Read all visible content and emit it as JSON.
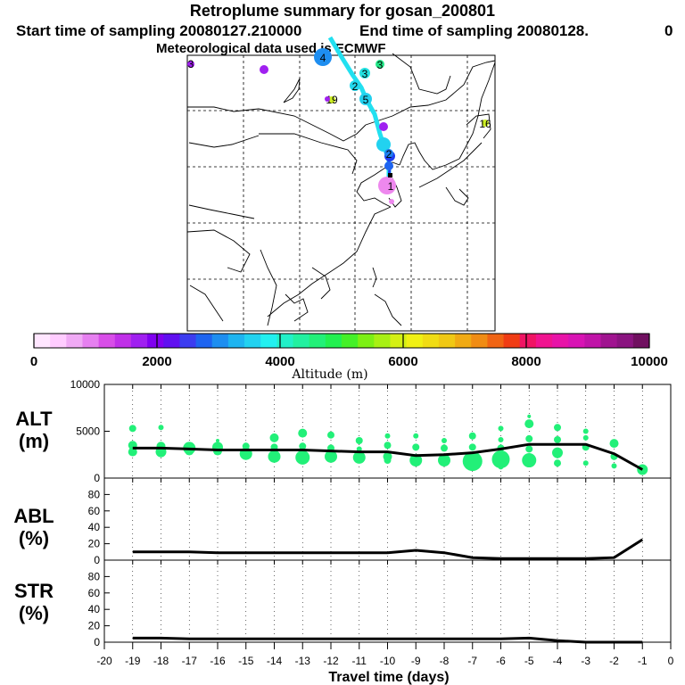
{
  "header": {
    "title": "Retroplume summary for gosan_200801",
    "start": "Start time of sampling 20080127.210000",
    "end": "End time of sampling 20080128.",
    "end_tail": "0",
    "met": "Meteorological data used is ECMWF"
  },
  "map": {
    "track_color": "#22e0f0",
    "markers": [
      {
        "label": "4",
        "color": "#1e8ef0"
      },
      {
        "label": "3",
        "color": "#22e888"
      },
      {
        "label": "3",
        "color": "#22e0e0"
      },
      {
        "label": "2",
        "color": "#22d8ee"
      },
      {
        "label": "5",
        "color": "#22d0ee"
      },
      {
        "label": "19",
        "color": "#ccee22"
      },
      {
        "label": "3",
        "color": "#a020f0"
      },
      {
        "label": "16",
        "color": "#ccee22"
      },
      {
        "label": "2",
        "color": "#1e80f0"
      },
      {
        "label": "1",
        "color": "#ee88ee"
      }
    ]
  },
  "colorbar": {
    "title": "Altitude (m)",
    "min": 0,
    "max": 10000,
    "labels": [
      "0",
      "2000",
      "4000",
      "6000",
      "8000",
      "10000"
    ],
    "colors": [
      "#ffe6ff",
      "#ffccff",
      "#f0aaf5",
      "#e680f0",
      "#d84ee8",
      "#c030e8",
      "#a020f0",
      "#8000f0",
      "#6010f0",
      "#3c3cf0",
      "#1e64f0",
      "#1e8ef0",
      "#1eb4f0",
      "#22d2f0",
      "#22f0f0",
      "#22f0c8",
      "#22f0a0",
      "#22f078",
      "#22f050",
      "#44f028",
      "#7cf014",
      "#a8f014",
      "#d4f014",
      "#f0f014",
      "#f0dc14",
      "#f0c814",
      "#f0aa14",
      "#f08c14",
      "#f06414",
      "#f03c14",
      "#f01464",
      "#f01490",
      "#e814a8",
      "#d814b4",
      "#c014a8",
      "#a01490",
      "#8a1480",
      "#701060"
    ]
  },
  "panels": {
    "alt_label": [
      "ALT",
      "(m)"
    ],
    "abl_label": [
      "ABL",
      "(%)"
    ],
    "str_label": [
      "STR",
      "(%)"
    ]
  },
  "chart_data": {
    "type": "line",
    "xlabel": "Travel time (days)",
    "x_ticks": [
      "-20",
      "-19",
      "-18",
      "-17",
      "-16",
      "-15",
      "-14",
      "-13",
      "-12",
      "-11",
      "-10",
      "-9",
      "-8",
      "-7",
      "-6",
      "-5",
      "-4",
      "-3",
      "-2",
      "-1",
      "0"
    ],
    "xlim": [
      -20,
      0
    ],
    "x": [
      -19,
      -18,
      -17,
      -16,
      -15,
      -14,
      -13,
      -12,
      -11,
      -10,
      -9,
      -8,
      -7,
      -6,
      -5,
      -4,
      -3,
      -2,
      -1
    ],
    "alt": {
      "ylim": [
        0,
        10000
      ],
      "yticks": [
        "0",
        "5000",
        "10000"
      ],
      "point_color": "#22f078",
      "mean": [
        3200,
        3200,
        3100,
        3000,
        3000,
        3000,
        3000,
        2900,
        2800,
        2800,
        2400,
        2500,
        2700,
        3100,
        3600,
        3600,
        3600,
        2600,
        900
      ],
      "points": [
        [
          -19,
          5300,
          4
        ],
        [
          -19,
          3500,
          5
        ],
        [
          -19,
          2800,
          5
        ],
        [
          -18,
          5400,
          3
        ],
        [
          -18,
          3400,
          5
        ],
        [
          -18,
          2800,
          6
        ],
        [
          -17,
          3200,
          7
        ],
        [
          -17,
          2900,
          5
        ],
        [
          -16,
          4000,
          2
        ],
        [
          -16,
          3300,
          6
        ],
        [
          -16,
          2900,
          5
        ],
        [
          -15,
          3400,
          4
        ],
        [
          -15,
          2600,
          7
        ],
        [
          -14,
          4300,
          5
        ],
        [
          -14,
          3300,
          4
        ],
        [
          -14,
          2300,
          7
        ],
        [
          -13,
          4800,
          5
        ],
        [
          -13,
          3400,
          4
        ],
        [
          -13,
          2200,
          8
        ],
        [
          -12,
          4600,
          4
        ],
        [
          -12,
          3200,
          4
        ],
        [
          -12,
          2300,
          7
        ],
        [
          -11,
          4000,
          4
        ],
        [
          -11,
          3100,
          3
        ],
        [
          -11,
          2200,
          7
        ],
        [
          -10,
          4500,
          3
        ],
        [
          -10,
          3500,
          4
        ],
        [
          -10,
          2300,
          5
        ],
        [
          -10,
          1900,
          4
        ],
        [
          -9,
          4500,
          3
        ],
        [
          -9,
          3300,
          4
        ],
        [
          -9,
          1900,
          7
        ],
        [
          -8,
          4000,
          3
        ],
        [
          -8,
          3200,
          4
        ],
        [
          -8,
          1900,
          7
        ],
        [
          -7,
          4500,
          4
        ],
        [
          -7,
          3300,
          4
        ],
        [
          -7,
          1800,
          11
        ],
        [
          -6,
          5300,
          3
        ],
        [
          -6,
          4100,
          3
        ],
        [
          -6,
          3200,
          4
        ],
        [
          -6,
          2000,
          10
        ],
        [
          -6,
          1200,
          3
        ],
        [
          -5,
          6600,
          2
        ],
        [
          -5,
          5800,
          5
        ],
        [
          -5,
          4200,
          4
        ],
        [
          -5,
          3100,
          4
        ],
        [
          -5,
          1900,
          8
        ],
        [
          -4,
          5400,
          4
        ],
        [
          -4,
          4100,
          4
        ],
        [
          -4,
          2700,
          6
        ],
        [
          -4,
          1600,
          4
        ],
        [
          -3,
          5000,
          3
        ],
        [
          -3,
          4300,
          3
        ],
        [
          -3,
          3300,
          4
        ],
        [
          -3,
          1600,
          3
        ],
        [
          -2,
          3700,
          5
        ],
        [
          -2,
          2300,
          4
        ],
        [
          -2,
          1300,
          3
        ],
        [
          -1,
          900,
          6
        ]
      ]
    },
    "abl": {
      "ylim": [
        0,
        100
      ],
      "yticks": [
        "0",
        "20",
        "40",
        "60",
        "80"
      ],
      "values": [
        10,
        10,
        10,
        9,
        9,
        9,
        9,
        9,
        9,
        9,
        12,
        9,
        3,
        2,
        2,
        2,
        2,
        3,
        25
      ]
    },
    "str": {
      "ylim": [
        0,
        100
      ],
      "yticks": [
        "0",
        "20",
        "40",
        "60",
        "80"
      ],
      "values": [
        5,
        5,
        4,
        4,
        4,
        4,
        4,
        4,
        4,
        4,
        4,
        4,
        4,
        4,
        5,
        2,
        0,
        0,
        0
      ]
    }
  }
}
